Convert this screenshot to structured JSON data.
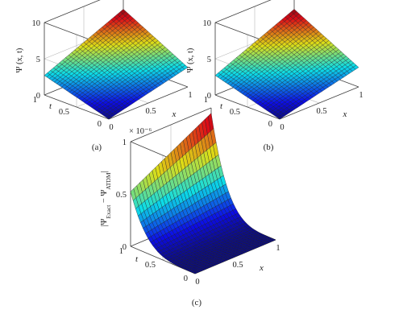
{
  "chart_data": [
    {
      "type": "surface",
      "panel_label": "(a)",
      "xlabel": "x",
      "ylabel": "t",
      "zlabel": "Ψ (x, t)",
      "xlim": [
        0,
        1
      ],
      "ylim": [
        0,
        1
      ],
      "zlim": [
        0,
        10
      ],
      "xticks": [
        "0",
        "0.5",
        "1"
      ],
      "yticks": [
        "0",
        "0.5",
        "1"
      ],
      "zticks": [
        "0",
        "5",
        "10"
      ],
      "x": [
        0,
        0.25,
        0.5,
        0.75,
        1
      ],
      "t": [
        0,
        0.25,
        0.5,
        0.75,
        1
      ],
      "z_corners": {
        "x0_t0": 0,
        "x1_t0": 2.7,
        "x0_t1": 2.7,
        "x1_t1": 7.4
      },
      "z_max": 7.4,
      "grid": true,
      "colormap": "jet"
    },
    {
      "type": "surface",
      "panel_label": "(b)",
      "xlabel": "x",
      "ylabel": "t",
      "zlabel": "Ψ (x, t)",
      "xlim": [
        0,
        1
      ],
      "ylim": [
        0,
        1
      ],
      "zlim": [
        0,
        10
      ],
      "xticks": [
        "0",
        "0.5",
        "1"
      ],
      "yticks": [
        "0",
        "0.5",
        "1"
      ],
      "zticks": [
        "0",
        "5",
        "10"
      ],
      "x": [
        0,
        0.25,
        0.5,
        0.75,
        1
      ],
      "t": [
        0,
        0.25,
        0.5,
        0.75,
        1
      ],
      "z_corners": {
        "x0_t0": 0,
        "x1_t0": 2.7,
        "x0_t1": 2.7,
        "x1_t1": 7.4
      },
      "z_max": 7.4,
      "grid": true,
      "colormap": "jet"
    },
    {
      "type": "surface",
      "panel_label": "(c)",
      "xlabel": "x",
      "ylabel": "t",
      "zlabel": "|Ψ_Exact − Ψ_ATDM|",
      "zlabel_parts": {
        "open": "|Ψ",
        "sub1": "Exact",
        "mid": " − Ψ",
        "sub2": "ATDM",
        "close": "|"
      },
      "z_multiplier": "× 10⁻⁶",
      "xlim": [
        0,
        1
      ],
      "ylim": [
        0,
        1
      ],
      "zlim": [
        0,
        1
      ],
      "xticks": [
        "0",
        "0.5",
        "1"
      ],
      "yticks": [
        "0",
        "0.5",
        "1"
      ],
      "zticks": [
        "0",
        "0.5",
        "1"
      ],
      "x": [
        0,
        0.25,
        0.5,
        0.75,
        1
      ],
      "t": [
        0,
        0.25,
        0.5,
        0.75,
        1
      ],
      "z_max": 0.95,
      "note": "error ≈ 0 for small t; grows steeply with t, largest near x = 1, t = 1",
      "grid": true,
      "colormap": "jet"
    }
  ]
}
